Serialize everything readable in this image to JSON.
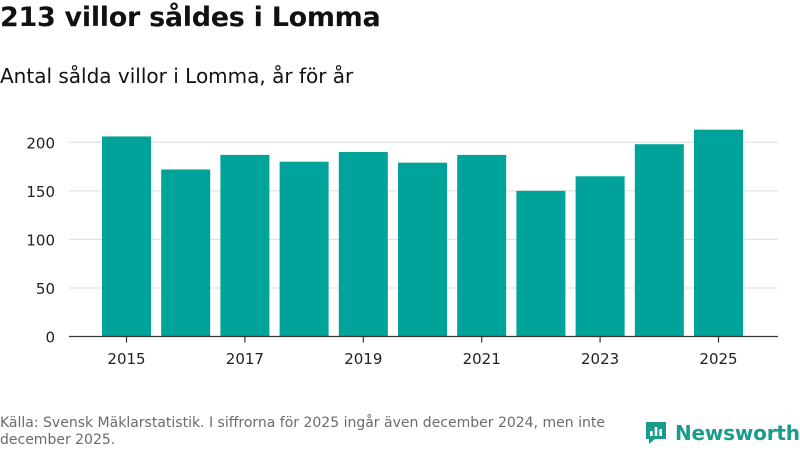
{
  "header": {
    "title": "213 villor såldes i Lomma",
    "subtitle": "Antal sålda villor i Lomma, år för år"
  },
  "chart_data": {
    "type": "bar",
    "categories": [
      "2015",
      "2016",
      "2017",
      "2018",
      "2019",
      "2020",
      "2021",
      "2022",
      "2023",
      "2024",
      "2025"
    ],
    "values": [
      206,
      172,
      187,
      180,
      190,
      179,
      187,
      150,
      165,
      198,
      213
    ],
    "x_tick_labels": [
      "2015",
      "2017",
      "2019",
      "2021",
      "2023",
      "2025"
    ],
    "y_ticks": [
      0,
      50,
      100,
      150,
      200
    ],
    "ylim": [
      0,
      225
    ],
    "xlabel": "",
    "ylabel": "",
    "grid": true,
    "bar_color": "#00a39a"
  },
  "footer": {
    "source": "Källa: Svensk Mäklarstatistik. I siffrorna för 2025 ingår även december 2024, men inte december 2025.",
    "brand": "Newsworthy",
    "brand_color": "#1a9b8c",
    "brand_icon": "newsworthy-logo-icon"
  }
}
